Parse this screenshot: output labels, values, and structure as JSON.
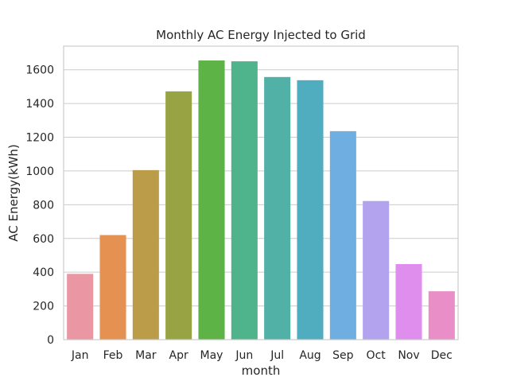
{
  "chart_data": {
    "type": "bar",
    "title": "Monthly AC Energy Injected to Grid",
    "xlabel": "month",
    "ylabel": "AC Energy(kWh)",
    "categories": [
      "Jan",
      "Feb",
      "Mar",
      "Apr",
      "May",
      "Jun",
      "Jul",
      "Aug",
      "Sep",
      "Oct",
      "Nov",
      "Dec"
    ],
    "values": [
      390,
      620,
      1005,
      1472,
      1655,
      1650,
      1557,
      1538,
      1236,
      822,
      448,
      287
    ],
    "ylim": [
      0,
      1740
    ],
    "yticks": [
      0,
      200,
      400,
      600,
      800,
      1000,
      1200,
      1400,
      1600
    ],
    "grid": true,
    "colors": [
      "#ea96a3",
      "#e59152",
      "#bb9c49",
      "#98a444",
      "#5eb347",
      "#4fb48c",
      "#51b1a7",
      "#50adc0",
      "#6eaee1",
      "#b3a3ee",
      "#e08eee",
      "#ea8ec8"
    ],
    "axes_color": "#cccccc",
    "grid_color": "#cccccc"
  }
}
